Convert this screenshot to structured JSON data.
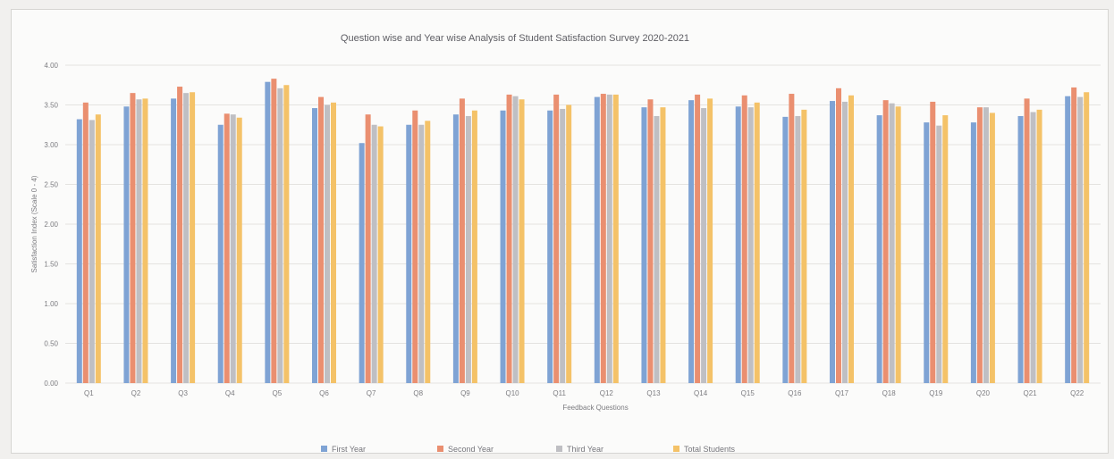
{
  "colors": {
    "first_year": "#7fa3d4",
    "second_year": "#ea8f70",
    "third_year": "#bfbfc3",
    "total_students": "#f4c268",
    "grid": "#e4e3e0",
    "text": "#7c7c80"
  },
  "chart_data": {
    "type": "bar",
    "title": "Question wise and Year wise Analysis of Student Satisfaction Survey 2020-2021",
    "xlabel": "Feedback Questions",
    "ylabel": "Satisfaction Index (Scale 0 - 4)",
    "ylim": [
      0,
      4
    ],
    "yticks": [
      "0.00",
      "0.50",
      "1.00",
      "1.50",
      "2.00",
      "2.50",
      "3.00",
      "3.50",
      "4.00"
    ],
    "grid": true,
    "legend_position": "bottom",
    "categories": [
      "Q1",
      "Q2",
      "Q3",
      "Q4",
      "Q5",
      "Q6",
      "Q7",
      "Q8",
      "Q9",
      "Q10",
      "Q11",
      "Q12",
      "Q13",
      "Q14",
      "Q15",
      "Q16",
      "Q17",
      "Q18",
      "Q19",
      "Q20",
      "Q21",
      "Q22"
    ],
    "series": [
      {
        "name": "First Year",
        "color_key": "first_year",
        "values": [
          3.32,
          3.48,
          3.58,
          3.25,
          3.79,
          3.46,
          3.02,
          3.25,
          3.38,
          3.43,
          3.43,
          3.6,
          3.47,
          3.56,
          3.48,
          3.35,
          3.55,
          3.37,
          3.28,
          3.28,
          3.36,
          3.61
        ]
      },
      {
        "name": "Second Year",
        "color_key": "second_year",
        "values": [
          3.53,
          3.65,
          3.73,
          3.39,
          3.83,
          3.6,
          3.38,
          3.43,
          3.58,
          3.63,
          3.63,
          3.64,
          3.57,
          3.63,
          3.62,
          3.64,
          3.71,
          3.56,
          3.54,
          3.47,
          3.58,
          3.72
        ]
      },
      {
        "name": "Third Year",
        "color_key": "third_year",
        "values": [
          3.31,
          3.57,
          3.65,
          3.38,
          3.71,
          3.5,
          3.25,
          3.25,
          3.36,
          3.61,
          3.45,
          3.63,
          3.36,
          3.46,
          3.47,
          3.36,
          3.54,
          3.52,
          3.24,
          3.47,
          3.41,
          3.6
        ]
      },
      {
        "name": "Total Students",
        "color_key": "total_students",
        "values": [
          3.38,
          3.58,
          3.66,
          3.34,
          3.75,
          3.53,
          3.23,
          3.3,
          3.43,
          3.57,
          3.5,
          3.63,
          3.47,
          3.58,
          3.53,
          3.44,
          3.62,
          3.48,
          3.37,
          3.4,
          3.44,
          3.66
        ]
      }
    ]
  }
}
